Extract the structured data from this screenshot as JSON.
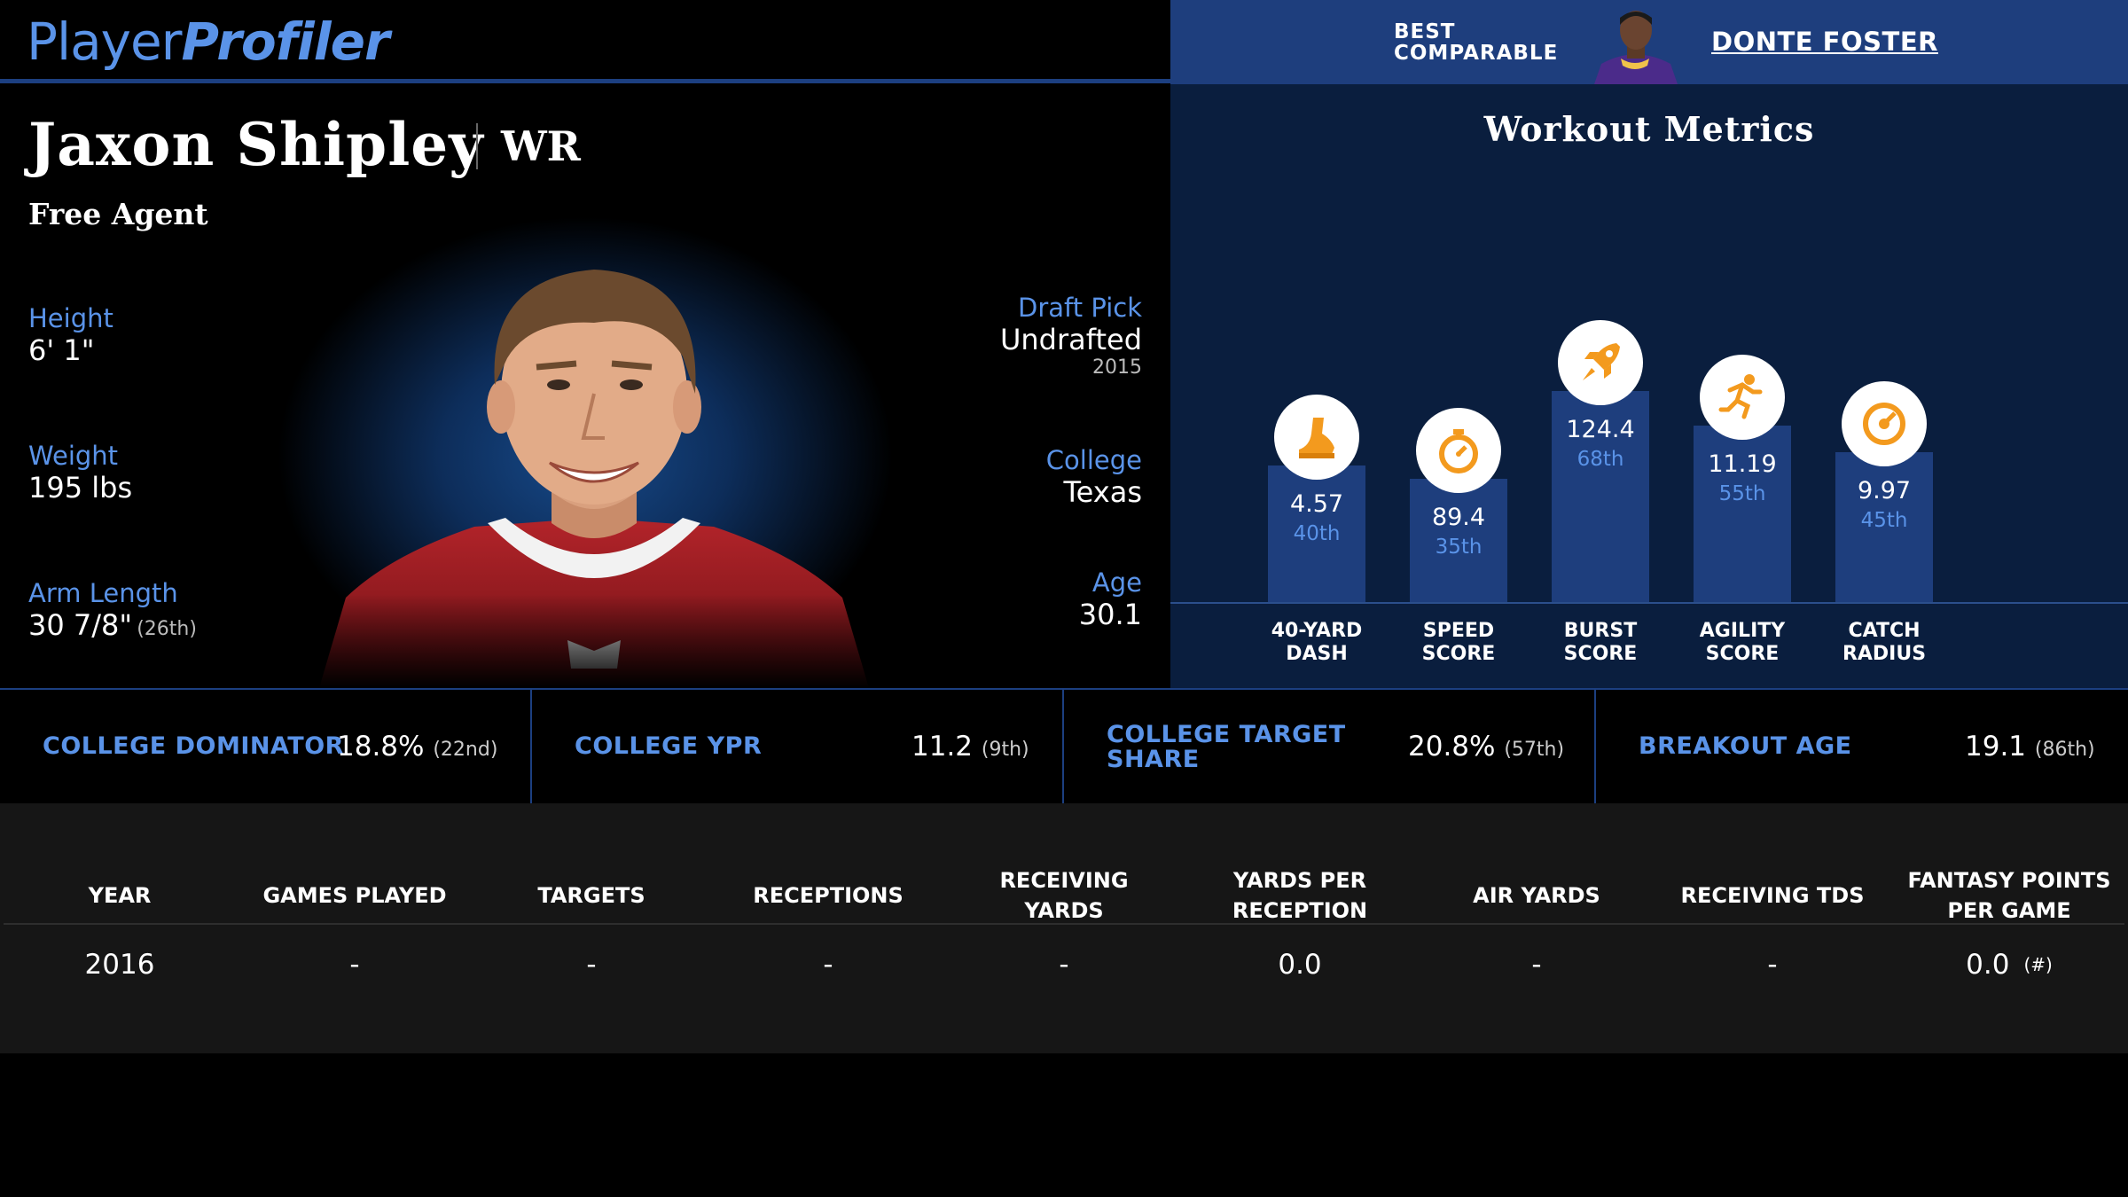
{
  "brand": {
    "part1": "Player",
    "part2": "Profiler"
  },
  "comparable": {
    "label_line1": "BEST",
    "label_line2": "COMPARABLE",
    "name": "DONTE FOSTER"
  },
  "player": {
    "name": "Jaxon Shipley",
    "position": "WR",
    "team": "Free Agent",
    "height": {
      "label": "Height",
      "value": "6' 1\""
    },
    "weight": {
      "label": "Weight",
      "value": "195 lbs"
    },
    "arm_length": {
      "label": "Arm Length",
      "value": "30 7/8\"",
      "rank": "(26th)"
    },
    "draft_pick": {
      "label": "Draft Pick",
      "value": "Undrafted",
      "year": "2015"
    },
    "college": {
      "label": "College",
      "value": "Texas"
    },
    "age": {
      "label": "Age",
      "value": "30.1"
    }
  },
  "workout": {
    "title": "Workout Metrics",
    "metrics": [
      {
        "label1": "40-YARD",
        "label2": "DASH",
        "value": "4.57",
        "percentile": "40th",
        "pct": 40,
        "icon": "shoe-icon"
      },
      {
        "label1": "SPEED",
        "label2": "SCORE",
        "value": "89.4",
        "percentile": "35th",
        "pct": 35,
        "icon": "stopwatch-icon"
      },
      {
        "label1": "BURST",
        "label2": "SCORE",
        "value": "124.4",
        "percentile": "68th",
        "pct": 68,
        "icon": "rocket-icon"
      },
      {
        "label1": "AGILITY",
        "label2": "SCORE",
        "value": "11.19",
        "percentile": "55th",
        "pct": 55,
        "icon": "runner-icon"
      },
      {
        "label1": "CATCH",
        "label2": "RADIUS",
        "value": "9.97",
        "percentile": "45th",
        "pct": 45,
        "icon": "target-icon"
      }
    ]
  },
  "college_metrics": [
    {
      "label": "COLLEGE DOMINATOR",
      "value": "18.8%",
      "rank": "(22nd)"
    },
    {
      "label": "COLLEGE YPR",
      "value": "11.2",
      "rank": "(9th)"
    },
    {
      "label_line1": "COLLEGE TARGET",
      "label_line2": "SHARE",
      "value": "20.8%",
      "rank": "(57th)"
    },
    {
      "label": "BREAKOUT AGE",
      "value": "19.1",
      "rank": "(86th)"
    }
  ],
  "stats_table": {
    "headers": [
      "YEAR",
      "GAMES PLAYED",
      "TARGETS",
      "RECEPTIONS",
      "RECEIVING YARDS",
      "YARDS PER RECEPTION",
      "AIR YARDS",
      "RECEIVING TDS",
      "FANTASY POINTS PER GAME"
    ],
    "rows": [
      {
        "cells": [
          "2016",
          "-",
          "-",
          "-",
          "-",
          "0.0",
          "-",
          "-",
          "0.0"
        ],
        "fp_rank": "(#)"
      }
    ]
  },
  "colors": {
    "accent": "#5a93e8",
    "header_blue": "#1e3e7d",
    "icon_orange": "#f39a1e"
  }
}
